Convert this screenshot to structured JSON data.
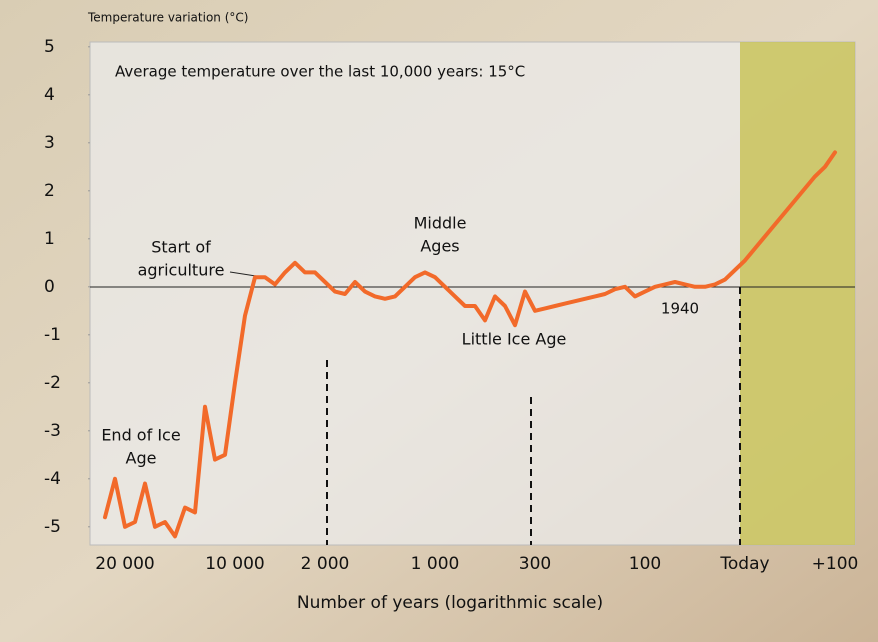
{
  "chart_data": {
    "type": "line",
    "title": "Temperature variation (°C)",
    "x_label": "Number of years (logarithmic scale)",
    "categories": [
      null,
      null,
      "20 000",
      null,
      null,
      null,
      null,
      null,
      null,
      null,
      null,
      null,
      null,
      "10 000",
      null,
      null,
      null,
      null,
      null,
      null,
      null,
      null,
      "2 000",
      null,
      null,
      null,
      null,
      null,
      null,
      null,
      null,
      null,
      null,
      "1 000",
      null,
      null,
      null,
      null,
      null,
      null,
      null,
      null,
      null,
      "300",
      null,
      null,
      null,
      null,
      null,
      null,
      null,
      null,
      null,
      null,
      "100",
      null,
      null,
      null,
      null,
      null,
      null,
      null,
      null,
      null,
      "Today",
      null,
      null,
      null,
      null,
      null,
      null,
      null,
      null,
      "+100"
    ],
    "values": [
      -4.8,
      -4.0,
      -5.0,
      -4.9,
      -4.1,
      -5.0,
      -4.9,
      -5.2,
      -4.6,
      -4.7,
      -2.5,
      -3.6,
      -3.5,
      -2.0,
      -0.6,
      0.2,
      0.2,
      0.05,
      0.3,
      0.5,
      0.3,
      0.3,
      0.1,
      -0.1,
      -0.15,
      0.1,
      -0.1,
      -0.2,
      -0.25,
      -0.2,
      0.0,
      0.2,
      0.3,
      0.2,
      0.0,
      -0.2,
      -0.4,
      -0.4,
      -0.7,
      -0.2,
      -0.4,
      -0.8,
      -0.1,
      -0.5,
      -0.45,
      -0.4,
      -0.35,
      -0.3,
      -0.25,
      -0.2,
      -0.15,
      -0.05,
      0.0,
      -0.2,
      -0.1,
      0.0,
      0.05,
      0.1,
      0.05,
      0.0,
      0.0,
      0.05,
      0.15,
      0.35,
      0.55,
      0.8,
      1.05,
      1.3,
      1.55,
      1.8,
      2.05,
      2.3,
      2.5,
      2.8
    ],
    "color": "#f26a2a",
    "ylim": [
      -5.4,
      5.1
    ],
    "yticks": [
      5,
      4,
      3,
      2,
      1,
      0,
      -1,
      -2,
      -3,
      -4,
      -5
    ],
    "annotations": [
      {
        "lines": [
          "Average temperature over the last 10,000 years: 15°C"
        ]
      },
      {
        "lines": [
          "End of Ice",
          "Age"
        ]
      },
      {
        "lines": [
          "Start of",
          "agriculture"
        ]
      },
      {
        "lines": [
          "Middle",
          "Ages"
        ]
      },
      {
        "lines": [
          "Little Ice Age"
        ]
      },
      {
        "lines": [
          "1940"
        ]
      }
    ]
  }
}
